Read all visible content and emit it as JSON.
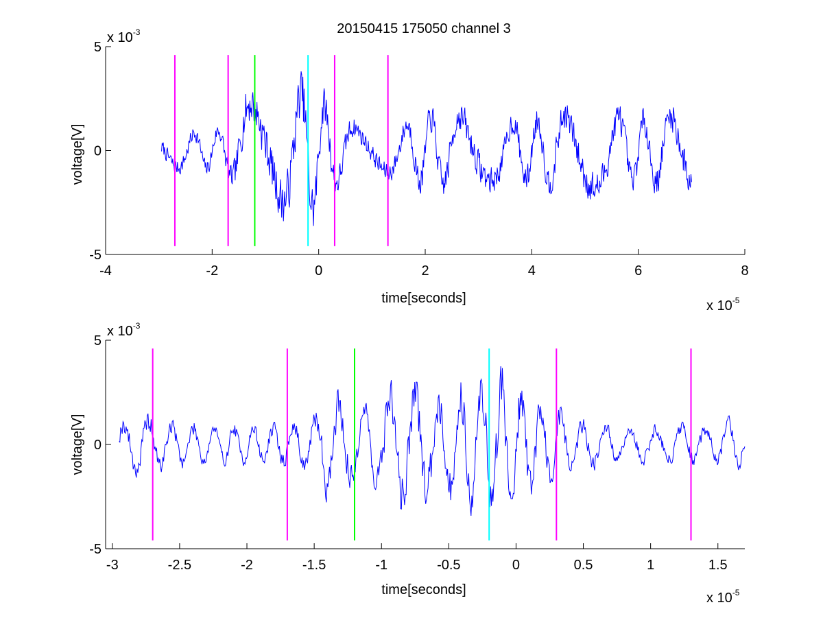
{
  "figure": {
    "title": "20150415 175050 channel 3"
  },
  "chart_data": [
    {
      "type": "line",
      "xlabel": "time[seconds]",
      "ylabel": "voltage[V]",
      "x_multiplier": "x 10",
      "x_exponent": "-5",
      "y_multiplier": "x 10",
      "y_exponent": "-3",
      "xlim": [
        -4,
        8
      ],
      "ylim": [
        -5,
        5
      ],
      "xticks": [
        -4,
        -2,
        0,
        2,
        4,
        6,
        8
      ],
      "xtick_labels": [
        "-4",
        "-2",
        "0",
        "2",
        "4",
        "6",
        "8"
      ],
      "yticks": [
        -5,
        0,
        5
      ],
      "ytick_labels": [
        "-5",
        "0",
        "5"
      ],
      "grid": false,
      "signal": {
        "color": "#0000ff",
        "x_range": [
          -2.95,
          7.0
        ],
        "env": [
          [
            -2.95,
            1.1
          ],
          [
            -2.0,
            1.2
          ],
          [
            -1.7,
            1.5
          ],
          [
            -1.45,
            2.8
          ],
          [
            -1.2,
            3.3
          ],
          [
            -0.9,
            3.1
          ],
          [
            -0.6,
            3.4
          ],
          [
            -0.4,
            3.6
          ],
          [
            -0.2,
            4.2
          ],
          [
            0.0,
            3.4
          ],
          [
            0.3,
            2.2
          ],
          [
            0.8,
            1.3
          ],
          [
            1.5,
            1.5
          ],
          [
            2.0,
            2.2
          ],
          [
            2.8,
            2.3
          ],
          [
            3.5,
            1.8
          ],
          [
            4.0,
            2.0
          ],
          [
            4.5,
            2.2
          ],
          [
            5.0,
            2.6
          ],
          [
            5.6,
            2.2
          ],
          [
            6.2,
            2.0
          ],
          [
            6.8,
            2.5
          ],
          [
            7.0,
            2.6
          ]
        ]
      },
      "markers": [
        {
          "x": -2.7,
          "color": "#ff00ff"
        },
        {
          "x": -1.7,
          "color": "#ff00ff"
        },
        {
          "x": -1.2,
          "color": "#00ff00"
        },
        {
          "x": -0.2,
          "color": "#00ffff"
        },
        {
          "x": 0.3,
          "color": "#ff00ff"
        },
        {
          "x": 1.3,
          "color": "#ff00ff"
        }
      ],
      "marker_yrange": [
        -4.6,
        4.6
      ]
    },
    {
      "type": "line",
      "xlabel": "time[seconds]",
      "ylabel": "voltage[V]",
      "x_multiplier": "x 10",
      "x_exponent": "-5",
      "y_multiplier": "x 10",
      "y_exponent": "-3",
      "xlim": [
        -3.05,
        1.7
      ],
      "ylim": [
        -5,
        5
      ],
      "xticks": [
        -3,
        -2.5,
        -2,
        -1.5,
        -1,
        -0.5,
        0,
        0.5,
        1,
        1.5
      ],
      "xtick_labels": [
        "-3",
        "-2.5",
        "-2",
        "-1.5",
        "-1",
        "-0.5",
        "0",
        "0.5",
        "1",
        "1.5"
      ],
      "yticks": [
        -5,
        0,
        5
      ],
      "ytick_labels": [
        "-5",
        "0",
        "5"
      ],
      "grid": false,
      "signal": {
        "color": "#0000ff",
        "x_range": [
          -2.95,
          1.7
        ],
        "env": [
          [
            -2.95,
            1.2
          ],
          [
            -2.8,
            1.7
          ],
          [
            -2.5,
            1.1
          ],
          [
            -2.0,
            1.0
          ],
          [
            -1.7,
            1.1
          ],
          [
            -1.5,
            1.5
          ],
          [
            -1.4,
            2.8
          ],
          [
            -1.2,
            2.4
          ],
          [
            -1.05,
            2.3
          ],
          [
            -0.9,
            3.5
          ],
          [
            -0.7,
            3.0
          ],
          [
            -0.5,
            2.8
          ],
          [
            -0.3,
            3.5
          ],
          [
            -0.2,
            4.0
          ],
          [
            -0.1,
            4.1
          ],
          [
            0.05,
            3.0
          ],
          [
            0.2,
            2.2
          ],
          [
            0.3,
            2.5
          ],
          [
            0.4,
            1.5
          ],
          [
            0.6,
            1.2
          ],
          [
            0.8,
            1.0
          ],
          [
            1.0,
            1.0
          ],
          [
            1.3,
            1.1
          ],
          [
            1.5,
            1.0
          ],
          [
            1.6,
            1.6
          ],
          [
            1.7,
            1.0
          ]
        ]
      },
      "markers": [
        {
          "x": -2.7,
          "color": "#ff00ff"
        },
        {
          "x": -1.7,
          "color": "#ff00ff"
        },
        {
          "x": -1.2,
          "color": "#00ff00"
        },
        {
          "x": -0.2,
          "color": "#00ffff"
        },
        {
          "x": 0.3,
          "color": "#ff00ff"
        },
        {
          "x": 1.3,
          "color": "#ff00ff"
        }
      ],
      "marker_yrange": [
        -4.6,
        4.6
      ]
    }
  ]
}
